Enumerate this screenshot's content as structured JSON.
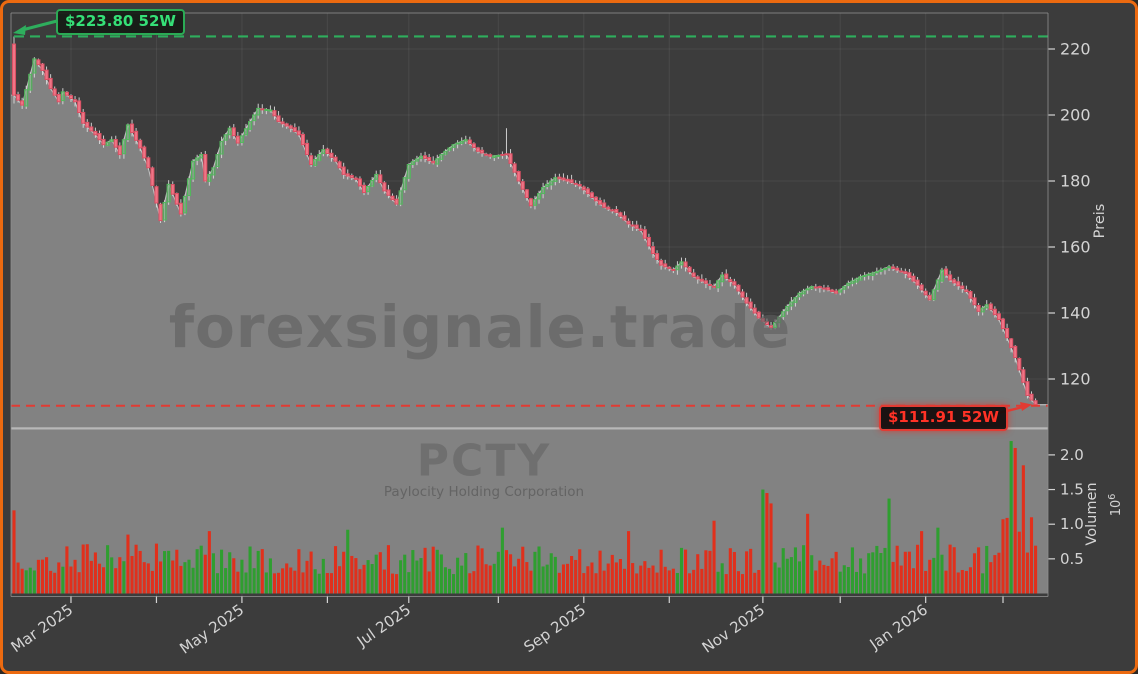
{
  "meta": {
    "background": "#3c3c3c",
    "border_color": "#ec6a10"
  },
  "watermark": {
    "main": "forexsignale.trade",
    "symbol": "PCTY",
    "company": "Paylocity Holding Corporation"
  },
  "annotations": {
    "high": {
      "label": "$223.80 52W",
      "value": 223.8,
      "text_color": "#35e077",
      "line_color": "#2eae5d"
    },
    "low": {
      "label": "$111.91 52W",
      "value": 111.91,
      "text_color": "#ff3226",
      "line_color": "#e23b33"
    }
  },
  "axes": {
    "price": {
      "label": "Preis",
      "ticks": [
        220,
        200,
        180,
        160,
        140,
        120
      ]
    },
    "volume": {
      "label": "Volumen",
      "scale_base": "10",
      "scale_exp": "6",
      "ticks": [
        2.0,
        1.5,
        1.0,
        0.5
      ]
    },
    "x_labeled_ticks": [
      "Mar 2025",
      "May 2025",
      "Jul 2025",
      "Sep 2025",
      "Nov 2025",
      "Jan 2026"
    ]
  },
  "chart_data": {
    "type": "candlestick+volume",
    "symbol": "PCTY",
    "company": "Paylocity Holding Corporation",
    "high_52w": 223.8,
    "low_52w": 111.91,
    "price_axis_range": [
      104.5,
      231
    ],
    "volume_axis_range_1e6": [
      0,
      2.36
    ],
    "candle_count": 252,
    "seed": 7,
    "close_anchors": [
      [
        0,
        206
      ],
      [
        2,
        203
      ],
      [
        5,
        217
      ],
      [
        7,
        213.5
      ],
      [
        9,
        208
      ],
      [
        11,
        204
      ],
      [
        12,
        207
      ],
      [
        15,
        204
      ],
      [
        17,
        197.5
      ],
      [
        20,
        194
      ],
      [
        22,
        191
      ],
      [
        24,
        192.5
      ],
      [
        26,
        188
      ],
      [
        28,
        197
      ],
      [
        31,
        190
      ],
      [
        33,
        184
      ],
      [
        36,
        168
      ],
      [
        38,
        179
      ],
      [
        41,
        170
      ],
      [
        44,
        186
      ],
      [
        46,
        188
      ],
      [
        47,
        180
      ],
      [
        49,
        184
      ],
      [
        51,
        192
      ],
      [
        53,
        196
      ],
      [
        55,
        191.5
      ],
      [
        58,
        198
      ],
      [
        60,
        202
      ],
      [
        63,
        201.5
      ],
      [
        65,
        198
      ],
      [
        68,
        196
      ],
      [
        70,
        194
      ],
      [
        73,
        185
      ],
      [
        76,
        189.5
      ],
      [
        79,
        186
      ],
      [
        81,
        182
      ],
      [
        84,
        180.5
      ],
      [
        86,
        176.5
      ],
      [
        89,
        182
      ],
      [
        91,
        177
      ],
      [
        94,
        173
      ],
      [
        97,
        185
      ],
      [
        100,
        187.5
      ],
      [
        103,
        185.5
      ],
      [
        105,
        188
      ],
      [
        108,
        191
      ],
      [
        111,
        192.5
      ],
      [
        114,
        189
      ],
      [
        117,
        187.5
      ],
      [
        121,
        188
      ],
      [
        124,
        180
      ],
      [
        127,
        172.5
      ],
      [
        130,
        178
      ],
      [
        133,
        181
      ],
      [
        136,
        180
      ],
      [
        139,
        178.5
      ],
      [
        142,
        175
      ],
      [
        145,
        172
      ],
      [
        148,
        170.5
      ],
      [
        151,
        167
      ],
      [
        154,
        165
      ],
      [
        157,
        158
      ],
      [
        159,
        154.5
      ],
      [
        162,
        153
      ],
      [
        164,
        155.5
      ],
      [
        167,
        151
      ],
      [
        170,
        149
      ],
      [
        172,
        148
      ],
      [
        174,
        151.5
      ],
      [
        177,
        148.5
      ],
      [
        180,
        143
      ],
      [
        183,
        138.5
      ],
      [
        186,
        135.5
      ],
      [
        190,
        142
      ],
      [
        193,
        146
      ],
      [
        196,
        148
      ],
      [
        199,
        147.5
      ],
      [
        202,
        146
      ],
      [
        205,
        149
      ],
      [
        208,
        151
      ],
      [
        212,
        152.5
      ],
      [
        215,
        154
      ],
      [
        219,
        152
      ],
      [
        222,
        148.5
      ],
      [
        225,
        144
      ],
      [
        228,
        153
      ],
      [
        230,
        150
      ],
      [
        234,
        146.5
      ],
      [
        237,
        140.5
      ],
      [
        239,
        142.5
      ],
      [
        242,
        138
      ],
      [
        244,
        132.5
      ],
      [
        246,
        126.5
      ],
      [
        248,
        119
      ],
      [
        249,
        115
      ],
      [
        251,
        112.2
      ]
    ],
    "special_candles": {
      "0": {
        "open": 221.5,
        "high": 223.8,
        "low": 203.5
      },
      "121": {
        "high": 196
      },
      "251": {
        "low": 111.91
      }
    },
    "volume_spikes_1e6": [
      [
        0,
        1.2,
        "down"
      ],
      [
        28,
        0.85,
        "down"
      ],
      [
        48,
        0.9,
        "down"
      ],
      [
        82,
        0.92,
        "up"
      ],
      [
        120,
        0.95,
        "up"
      ],
      [
        151,
        0.9,
        "down"
      ],
      [
        172,
        1.05,
        "down"
      ],
      [
        184,
        1.5,
        "up"
      ],
      [
        185,
        1.45,
        "down"
      ],
      [
        186,
        1.3,
        "down"
      ],
      [
        195,
        1.15,
        "down"
      ],
      [
        215,
        1.37,
        "up"
      ],
      [
        223,
        0.9,
        "down"
      ],
      [
        227,
        0.95,
        "up"
      ],
      [
        245,
        2.2,
        "up"
      ],
      [
        246,
        2.1,
        "down"
      ],
      [
        248,
        1.85,
        "down"
      ],
      [
        250,
        1.1,
        "down"
      ]
    ],
    "month_ticks": [
      {
        "i": 14,
        "label": "Mar 2025"
      },
      {
        "i": 35,
        "label": ""
      },
      {
        "i": 56,
        "label": "May 2025"
      },
      {
        "i": 77,
        "label": ""
      },
      {
        "i": 97,
        "label": "Jul 2025"
      },
      {
        "i": 119,
        "label": ""
      },
      {
        "i": 140,
        "label": "Sep 2025"
      },
      {
        "i": 161,
        "label": ""
      },
      {
        "i": 184,
        "label": "Nov 2025"
      },
      {
        "i": 203,
        "label": ""
      },
      {
        "i": 224,
        "label": "Jan 2026"
      },
      {
        "i": 243,
        "label": ""
      }
    ],
    "colors": {
      "up_body": "rgba(70,150,80,0.45)",
      "up_edge": "#52b95c",
      "down_body": "#ef7586",
      "down_edge": "#d94f63",
      "wick": "#dcdcdc",
      "vol_up": "#2f9e30",
      "vol_down": "#e0301c",
      "area_fill": "#828282",
      "close_line": "#c6c6c6",
      "grid": "rgba(255,255,255,0.07)",
      "spine": "#8f8f8f",
      "divider": "#c2c2c2",
      "tick_text": "#d4d4d4"
    }
  }
}
